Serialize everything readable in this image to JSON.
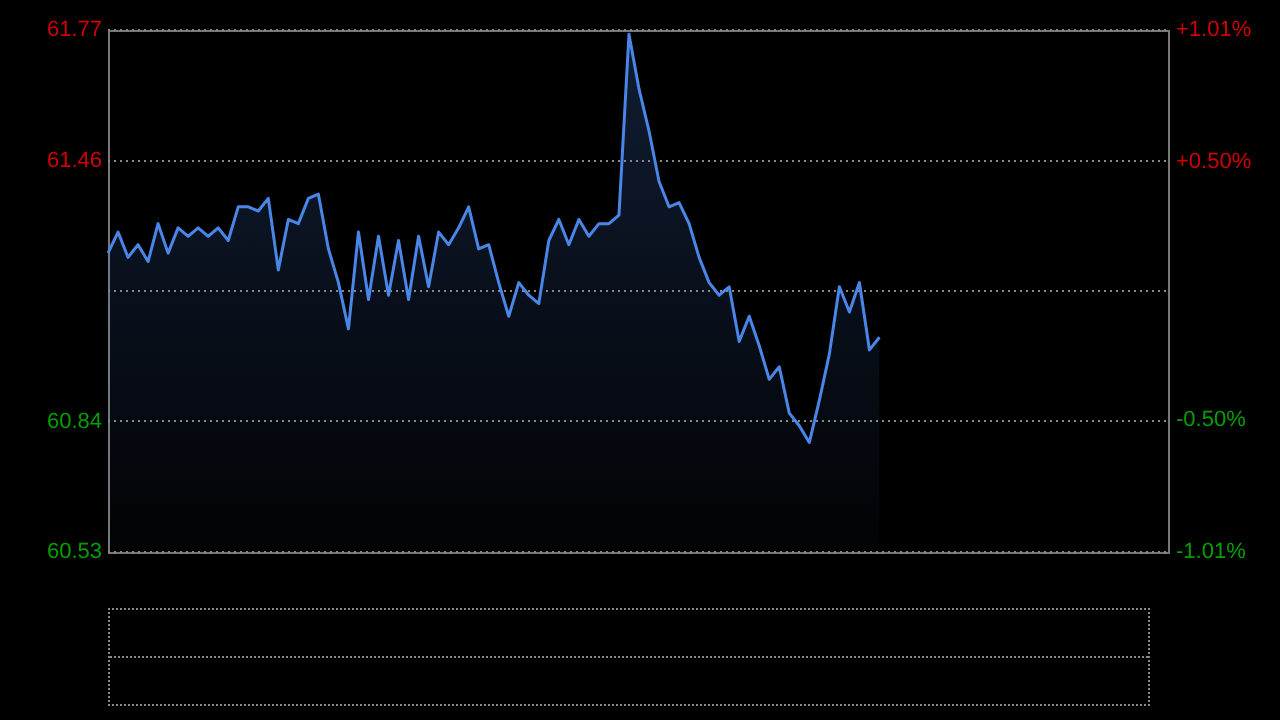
{
  "chart_data": {
    "type": "area",
    "categories": [
      null,
      null,
      null,
      null,
      null,
      null,
      null,
      null,
      null,
      null,
      null,
      null,
      null,
      null,
      null,
      null,
      null,
      null,
      null,
      null,
      null,
      null,
      null,
      null,
      null,
      null,
      null,
      null,
      null,
      null,
      null,
      null,
      null,
      null,
      null,
      null,
      null,
      null,
      null,
      null,
      null,
      null,
      null,
      null,
      null,
      null,
      null,
      null,
      null,
      null,
      null,
      null,
      null,
      null,
      null,
      null,
      null,
      null,
      null,
      null,
      null,
      null,
      null,
      null,
      null,
      null,
      null,
      null,
      null,
      null,
      null,
      null,
      null,
      null,
      null,
      null,
      null,
      null,
      null,
      null,
      null,
      null,
      null,
      null,
      null,
      null,
      null,
      null,
      null,
      null,
      null,
      null,
      null,
      null,
      null,
      null,
      null,
      null,
      null,
      null,
      null,
      null,
      null,
      null,
      null,
      null,
      null
    ],
    "ylim": [
      60.53,
      61.77
    ],
    "yticks": [
      60.53,
      60.84,
      {
        "value": 61.15,
        "label": null
      },
      61.46,
      61.77
    ],
    "y2lim": [
      -1.01,
      1.01
    ],
    "y2ticks": [
      {
        "value": -1.01,
        "label": "-1.01%"
      },
      {
        "value": -0.5,
        "label": "-0.50%"
      },
      {
        "value": 0.5,
        "label": "+0.50%"
      },
      {
        "value": 1.01,
        "label": "+1.01%"
      }
    ],
    "grid": "y",
    "legend": false,
    "tick_labels": "y",
    "marker": "none",
    "line_style": "solid",
    "series": [
      {
        "color": "#4a86e8",
        "values": [
          61.24,
          61.29,
          61.23,
          61.26,
          61.22,
          61.31,
          61.24,
          61.3,
          61.28,
          61.3,
          61.28,
          61.3,
          61.27,
          61.35,
          61.35,
          61.34,
          61.37,
          61.2,
          61.32,
          61.31,
          61.37,
          61.38,
          61.25,
          61.17,
          61.06,
          61.29,
          61.13,
          61.28,
          61.14,
          61.27,
          61.13,
          61.28,
          61.16,
          61.29,
          61.26,
          61.3,
          61.35,
          61.25,
          61.26,
          61.17,
          61.09,
          61.17,
          61.14,
          61.12,
          61.27,
          61.32,
          61.26,
          61.32,
          61.28,
          61.31,
          61.31,
          61.33,
          61.76,
          61.63,
          61.53,
          61.41,
          61.35,
          61.36,
          61.31,
          61.23,
          61.17,
          61.14,
          61.16,
          61.03,
          61.09,
          61.02,
          60.94,
          60.97,
          60.86,
          60.83,
          60.79,
          60.89,
          61.0,
          61.16,
          61.1,
          61.17,
          61.01,
          61.04,
          null,
          null,
          null,
          null,
          null,
          null,
          null,
          null,
          null,
          null,
          null,
          null,
          null,
          null,
          null,
          null,
          null,
          null,
          null,
          null,
          null,
          null,
          null,
          null,
          null,
          null,
          null,
          null,
          null
        ]
      }
    ]
  }
}
